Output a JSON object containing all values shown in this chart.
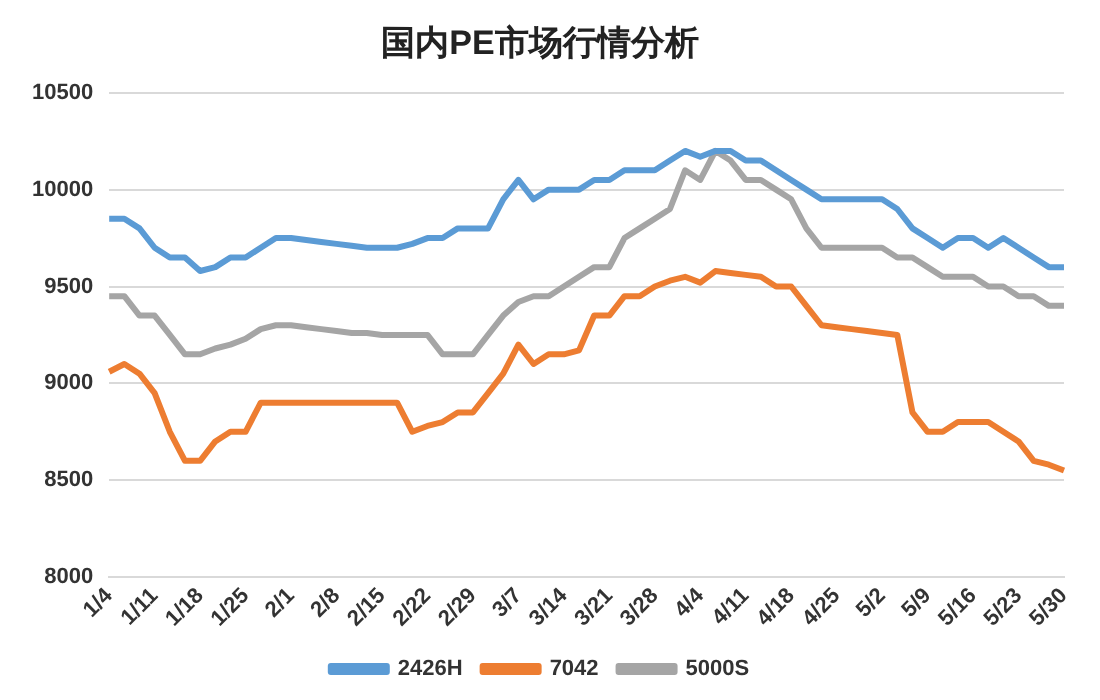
{
  "chart_data": {
    "type": "line",
    "title": "国内PE市场行情分析",
    "categories": [
      "1/4",
      null,
      null,
      "1/11",
      null,
      null,
      "1/18",
      null,
      null,
      "1/25",
      null,
      null,
      "2/1",
      null,
      null,
      "2/8",
      null,
      null,
      "2/15",
      null,
      null,
      "2/22",
      null,
      null,
      "2/29",
      null,
      null,
      "3/7",
      null,
      null,
      "3/14",
      null,
      null,
      "3/21",
      null,
      null,
      "3/28",
      null,
      null,
      "4/4",
      null,
      null,
      "4/11",
      null,
      null,
      "4/18",
      null,
      null,
      "4/25",
      null,
      null,
      "5/2",
      null,
      null,
      "5/9",
      null,
      null,
      "5/16",
      null,
      null,
      "5/23",
      null,
      null,
      "5/30"
    ],
    "series": [
      {
        "name": "2426H",
        "color": "#5b9bd5",
        "values": [
          9850,
          9850,
          9800,
          9700,
          9650,
          9650,
          9580,
          9600,
          9650,
          9650,
          9700,
          9750,
          9750,
          9740,
          9730,
          9720,
          9710,
          9700,
          9700,
          9700,
          9720,
          9750,
          9750,
          9800,
          9800,
          9800,
          9950,
          10050,
          9950,
          10000,
          10000,
          10000,
          10050,
          10050,
          10100,
          10100,
          10100,
          10150,
          10200,
          10170,
          10200,
          10200,
          10150,
          10150,
          10100,
          10050,
          10000,
          9950,
          9950,
          9950,
          9950,
          9950,
          9900,
          9800,
          9750,
          9700,
          9750,
          9750,
          9700,
          9750,
          9700,
          9650,
          9600,
          9600
        ]
      },
      {
        "name": "7042",
        "color": "#ed7d31",
        "values": [
          9060,
          9100,
          9050,
          8950,
          8750,
          8600,
          8600,
          8700,
          8750,
          8750,
          8900,
          8900,
          8900,
          8900,
          8900,
          8900,
          8900,
          8900,
          8900,
          8900,
          8750,
          8780,
          8800,
          8850,
          8850,
          8950,
          9050,
          9200,
          9100,
          9150,
          9150,
          9170,
          9350,
          9350,
          9450,
          9450,
          9500,
          9530,
          9550,
          9520,
          9580,
          9570,
          9560,
          9550,
          9500,
          9500,
          9400,
          9300,
          9290,
          9280,
          9270,
          9260,
          9250,
          8850,
          8750,
          8750,
          8800,
          8800,
          8800,
          8750,
          8700,
          8600,
          8580,
          8550
        ]
      },
      {
        "name": "5000S",
        "color": "#a5a5a5",
        "values": [
          9450,
          9450,
          9350,
          9350,
          9250,
          9150,
          9150,
          9180,
          9200,
          9230,
          9280,
          9300,
          9300,
          9290,
          9280,
          9270,
          9260,
          9260,
          9250,
          9250,
          9250,
          9250,
          9150,
          9150,
          9150,
          9250,
          9350,
          9420,
          9450,
          9450,
          9500,
          9550,
          9600,
          9600,
          9750,
          9800,
          9850,
          9900,
          10100,
          10050,
          10200,
          10150,
          10050,
          10050,
          10000,
          9950,
          9800,
          9700,
          9700,
          9700,
          9700,
          9700,
          9650,
          9650,
          9600,
          9550,
          9550,
          9550,
          9500,
          9500,
          9450,
          9450,
          9400,
          9400
        ]
      }
    ],
    "ylim": [
      8000,
      10500
    ],
    "yticks": [
      8000,
      8500,
      9000,
      9500,
      10000,
      10500
    ],
    "grid": "y",
    "legend": "bottom",
    "marker": "none",
    "line_style": "solid"
  }
}
